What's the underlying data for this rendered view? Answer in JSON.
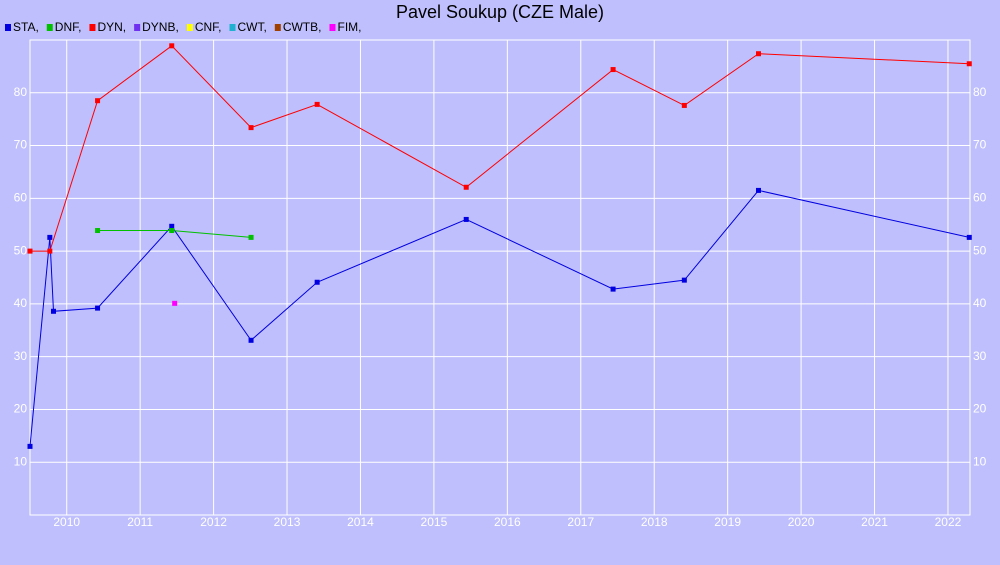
{
  "chart_data": {
    "type": "line",
    "title": "Pavel Soukup (CZE Male)",
    "xlim": [
      2009.5,
      2022.3
    ],
    "xticks": [
      2010,
      2011,
      2012,
      2013,
      2014,
      2015,
      2016,
      2017,
      2018,
      2019,
      2020,
      2021,
      2022
    ],
    "ylim": [
      0,
      90
    ],
    "yticks": [
      10,
      20,
      30,
      40,
      50,
      60,
      70,
      80
    ],
    "grid": true,
    "series": [
      {
        "name": "STA,",
        "color": "#0000e0",
        "x": [
          2009.5,
          2009.77,
          2009.82,
          2010.42,
          2011.43,
          2012.51,
          2013.41,
          2015.44,
          2017.44,
          2018.41,
          2019.42,
          2022.29
        ],
        "values": [
          13,
          52.6,
          38.6,
          39.2,
          54.7,
          33.1,
          44.1,
          56,
          42.8,
          44.5,
          61.5,
          52.6
        ]
      },
      {
        "name": "DNF,",
        "color": "#00c000",
        "x": [
          2010.42,
          2011.43,
          2012.51
        ],
        "values": [
          53.9,
          53.9,
          52.6
        ]
      },
      {
        "name": "DYN,",
        "color": "#ff0000",
        "x": [
          2009.5,
          2009.77,
          2010.42,
          2011.43,
          2012.51,
          2013.41,
          2015.44,
          2017.44,
          2018.41,
          2019.42,
          2022.29
        ],
        "values": [
          50,
          50,
          78.5,
          88.9,
          73.4,
          77.8,
          62.1,
          84.4,
          77.6,
          87.4,
          85.5
        ]
      },
      {
        "name": "DYNB,",
        "color": "#7030f0",
        "x": [],
        "values": []
      },
      {
        "name": "CNF,",
        "color": "#ffff00",
        "x": [],
        "values": []
      },
      {
        "name": "CWT,",
        "color": "#20b0d0",
        "x": [],
        "values": []
      },
      {
        "name": "CWTB,",
        "color": "#a04000",
        "x": [],
        "values": []
      },
      {
        "name": "FIM,",
        "color": "#ff00ff",
        "x": [
          2011.47
        ],
        "values": [
          40.1
        ]
      }
    ]
  }
}
